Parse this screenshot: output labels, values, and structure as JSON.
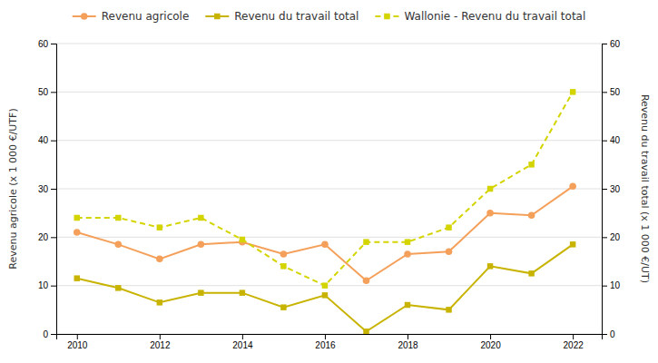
{
  "chart_data": {
    "type": "line",
    "x": [
      2010,
      2011,
      2012,
      2013,
      2014,
      2015,
      2016,
      2017,
      2018,
      2019,
      2020,
      2021,
      2022
    ],
    "xlim": [
      2009.5,
      2022.7
    ],
    "xticks": [
      2010,
      2012,
      2014,
      2016,
      2018,
      2020,
      2022
    ],
    "ylim": [
      0,
      60
    ],
    "yticks": [
      0,
      10,
      20,
      30,
      40,
      50,
      60
    ],
    "y2lim": [
      0,
      60
    ],
    "y2ticks": [
      0,
      10,
      20,
      30,
      40,
      50,
      60
    ],
    "ylabel": "Revenu agricole (x 1 000 €/UTF)",
    "y2label": "Revenu du travail total (x 1 000 €/UT)",
    "grid": true,
    "legend": "top",
    "series": [
      {
        "name": "Revenu agricole",
        "color": "#f5a05a",
        "marker": "circle",
        "line_style": "solid",
        "values": [
          21,
          18.5,
          15.5,
          18.5,
          19,
          16.5,
          18.5,
          11,
          16.5,
          17,
          25,
          24.5,
          30.5
        ]
      },
      {
        "name": "Revenu du travail total",
        "color": "#c8b400",
        "marker": "square",
        "line_style": "solid",
        "values": [
          11.5,
          9.5,
          6.5,
          8.5,
          8.5,
          5.5,
          8,
          0.5,
          6,
          5,
          14,
          12.5,
          18.5
        ]
      },
      {
        "name": "Wallonie - Revenu du travail total",
        "color": "#d4d400",
        "marker": "square",
        "line_style": "dashed",
        "axis": "y2",
        "values": [
          24,
          24,
          22,
          24,
          19.5,
          14,
          10,
          19,
          19,
          22,
          30,
          35,
          50
        ]
      }
    ]
  }
}
